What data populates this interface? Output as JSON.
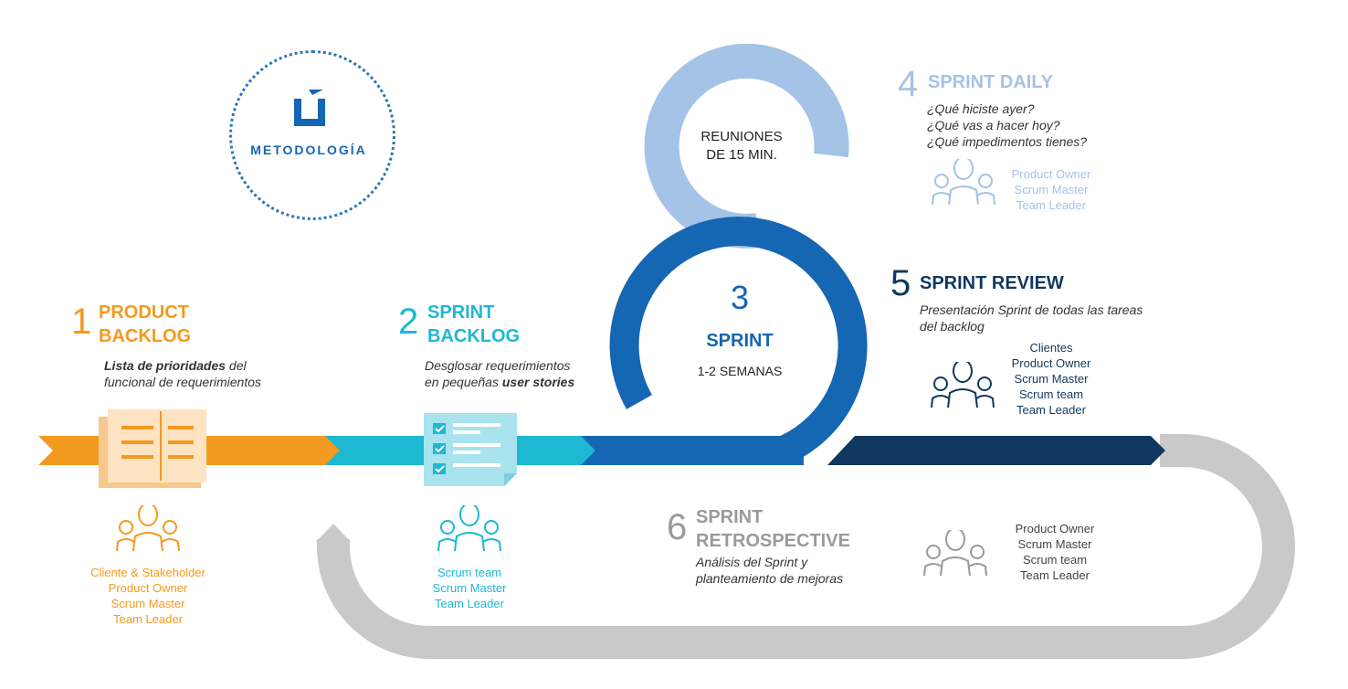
{
  "logo": {
    "text": "METODOLOGÍA"
  },
  "colors": {
    "orange": "#f39a20",
    "cyan": "#1db8d2",
    "blue": "#1566b3",
    "light_blue": "#a4c3e6",
    "navy": "#10385e",
    "gray": "#c9c9c9",
    "gray_text": "#9a9a9a"
  },
  "steps": [
    {
      "number": "1",
      "title_line1": "PRODUCT",
      "title_line2": "BACKLOG",
      "desc_em": "Lista de prioridades",
      "desc_rest": " del",
      "desc_line2": "funcional de requerimientos",
      "roles": [
        "Cliente & Stakeholder",
        "Product Owner",
        "Scrum Master",
        "Team Leader"
      ]
    },
    {
      "number": "2",
      "title_line1": "SPRINT",
      "title_line2": "BACKLOG",
      "desc_line1": "Desglosar requerimientos",
      "desc_pre": "en pequeñas ",
      "desc_em": "user stories",
      "roles": [
        "Scrum team",
        "Scrum Master",
        "Team Leader"
      ]
    },
    {
      "number": "3",
      "title": "SPRINT",
      "subtitle": "1-2 SEMANAS"
    },
    {
      "number": "4",
      "title": "SPRINT DAILY",
      "desc": [
        "¿Qué hiciste ayer?",
        "¿Qué vas a hacer hoy?",
        "¿Qué impedimentos tienes?"
      ],
      "roles": [
        "Product Owner",
        "Scrum Master",
        "Team Leader"
      ]
    },
    {
      "number": "5",
      "title": "SPRINT REVIEW",
      "desc": [
        "Presentación Sprint de todas las tareas",
        "del backlog"
      ],
      "roles": [
        "Clientes",
        "Product Owner",
        "Scrum Master",
        "Scrum team",
        "Team Leader"
      ]
    },
    {
      "number": "6",
      "title_line1": "SPRINT",
      "title_line2": "RETROSPECTIVE",
      "desc": [
        "Análisis del Sprint y",
        "planteamiento de mejoras"
      ],
      "roles": [
        "Product Owner",
        "Scrum Master",
        "Scrum team",
        "Team Leader"
      ]
    }
  ],
  "daily_loop": {
    "line1": "REUNIONES",
    "line2": "DE 15 MIN."
  }
}
